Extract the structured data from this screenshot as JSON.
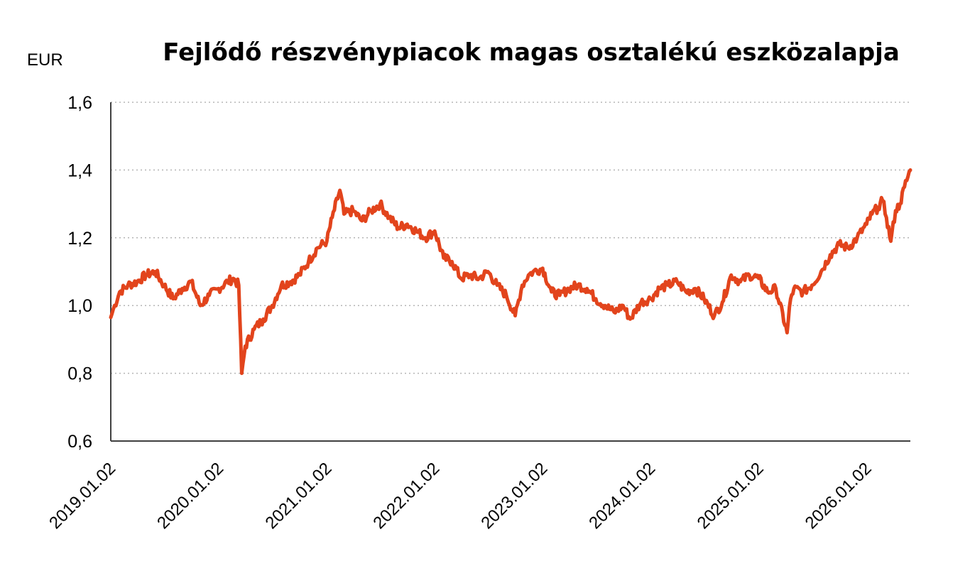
{
  "chart_data": {
    "type": "line",
    "title": "Fejlődő részvénypiacok magas osztalékú eszközalapja",
    "unit_label": "EUR",
    "xlabel": "",
    "ylabel": "",
    "ylim": [
      0.6,
      1.6
    ],
    "y_ticks": [
      "0,6",
      "0,8",
      "1,0",
      "1,2",
      "1,4",
      "1,6"
    ],
    "y_tick_values": [
      0.6,
      0.8,
      1.0,
      1.2,
      1.4,
      1.6
    ],
    "x_tick_labels": [
      "2019.01.02",
      "2020.01.02",
      "2021.01.02",
      "2022.01.02",
      "2023.01.02",
      "2024.01.02",
      "2025.01.02",
      "2026.01.02"
    ],
    "xlim": [
      "2019.01.02",
      "2026.05.30"
    ],
    "grid": "horizontal dotted",
    "legend": "none",
    "series": [
      {
        "color": "#e2441c",
        "x": [
          "2019.01.02",
          "2019.01.15",
          "2019.02.01",
          "2019.03.01",
          "2019.04.01",
          "2019.05.01",
          "2019.06.01",
          "2019.07.01",
          "2019.08.01",
          "2019.09.01",
          "2019.10.01",
          "2019.11.01",
          "2019.12.01",
          "2020.01.02",
          "2020.02.01",
          "2020.02.20",
          "2020.03.10",
          "2020.03.20",
          "2020.04.01",
          "2020.05.01",
          "2020.06.01",
          "2020.07.01",
          "2020.08.01",
          "2020.09.01",
          "2020.10.01",
          "2020.11.01",
          "2020.12.01",
          "2021.01.02",
          "2021.01.20",
          "2021.02.15",
          "2021.03.01",
          "2021.04.01",
          "2021.05.01",
          "2021.06.01",
          "2021.07.01",
          "2021.08.01",
          "2021.09.01",
          "2021.10.01",
          "2021.11.01",
          "2021.12.01",
          "2022.01.02",
          "2022.02.01",
          "2022.03.01",
          "2022.04.01",
          "2022.05.01",
          "2022.06.01",
          "2022.07.01",
          "2022.08.01",
          "2022.09.01",
          "2022.10.01",
          "2022.10.25",
          "2022.11.15",
          "2022.12.01",
          "2023.01.02",
          "2023.02.01",
          "2023.03.01",
          "2023.04.01",
          "2023.05.01",
          "2023.06.01",
          "2023.07.01",
          "2023.08.01",
          "2023.09.01",
          "2023.10.01",
          "2023.10.25",
          "2023.12.01",
          "2024.01.02",
          "2024.02.01",
          "2024.03.01",
          "2024.04.01",
          "2024.05.01",
          "2024.06.01",
          "2024.07.01",
          "2024.08.05",
          "2024.09.01",
          "2024.10.01",
          "2024.11.01",
          "2024.12.01",
          "2025.01.02",
          "2025.02.01",
          "2025.03.01",
          "2025.04.08",
          "2025.04.20",
          "2025.05.01",
          "2025.06.01",
          "2025.07.01",
          "2025.08.01",
          "2025.09.01",
          "2025.10.01",
          "2025.11.01",
          "2025.12.01",
          "2026.01.02",
          "2026.01.20",
          "2026.02.10",
          "2026.02.25",
          "2026.03.10",
          "2026.03.25",
          "2026.04.10",
          "2026.04.25",
          "2026.05.10",
          "2026.05.30"
        ],
        "y": [
          0.965,
          1.0,
          1.04,
          1.06,
          1.07,
          1.09,
          1.1,
          1.06,
          1.02,
          1.05,
          1.07,
          1.0,
          1.03,
          1.05,
          1.07,
          1.08,
          1.06,
          0.8,
          0.88,
          0.93,
          0.96,
          1.0,
          1.06,
          1.07,
          1.09,
          1.13,
          1.17,
          1.19,
          1.26,
          1.34,
          1.27,
          1.28,
          1.25,
          1.28,
          1.3,
          1.26,
          1.23,
          1.24,
          1.22,
          1.2,
          1.22,
          1.14,
          1.13,
          1.08,
          1.09,
          1.08,
          1.1,
          1.06,
          1.03,
          0.97,
          1.06,
          1.09,
          1.1,
          1.11,
          1.04,
          1.03,
          1.05,
          1.06,
          1.05,
          1.02,
          1.0,
          0.98,
          1.0,
          0.96,
          1.01,
          1.02,
          1.05,
          1.06,
          1.07,
          1.04,
          1.05,
          1.02,
          0.97,
          1.01,
          1.09,
          1.07,
          1.09,
          1.08,
          1.04,
          1.05,
          0.92,
          1.02,
          1.05,
          1.04,
          1.06,
          1.1,
          1.15,
          1.18,
          1.17,
          1.2,
          1.24,
          1.27,
          1.29,
          1.31,
          1.26,
          1.19,
          1.28,
          1.3,
          1.35,
          1.4
        ]
      }
    ]
  }
}
